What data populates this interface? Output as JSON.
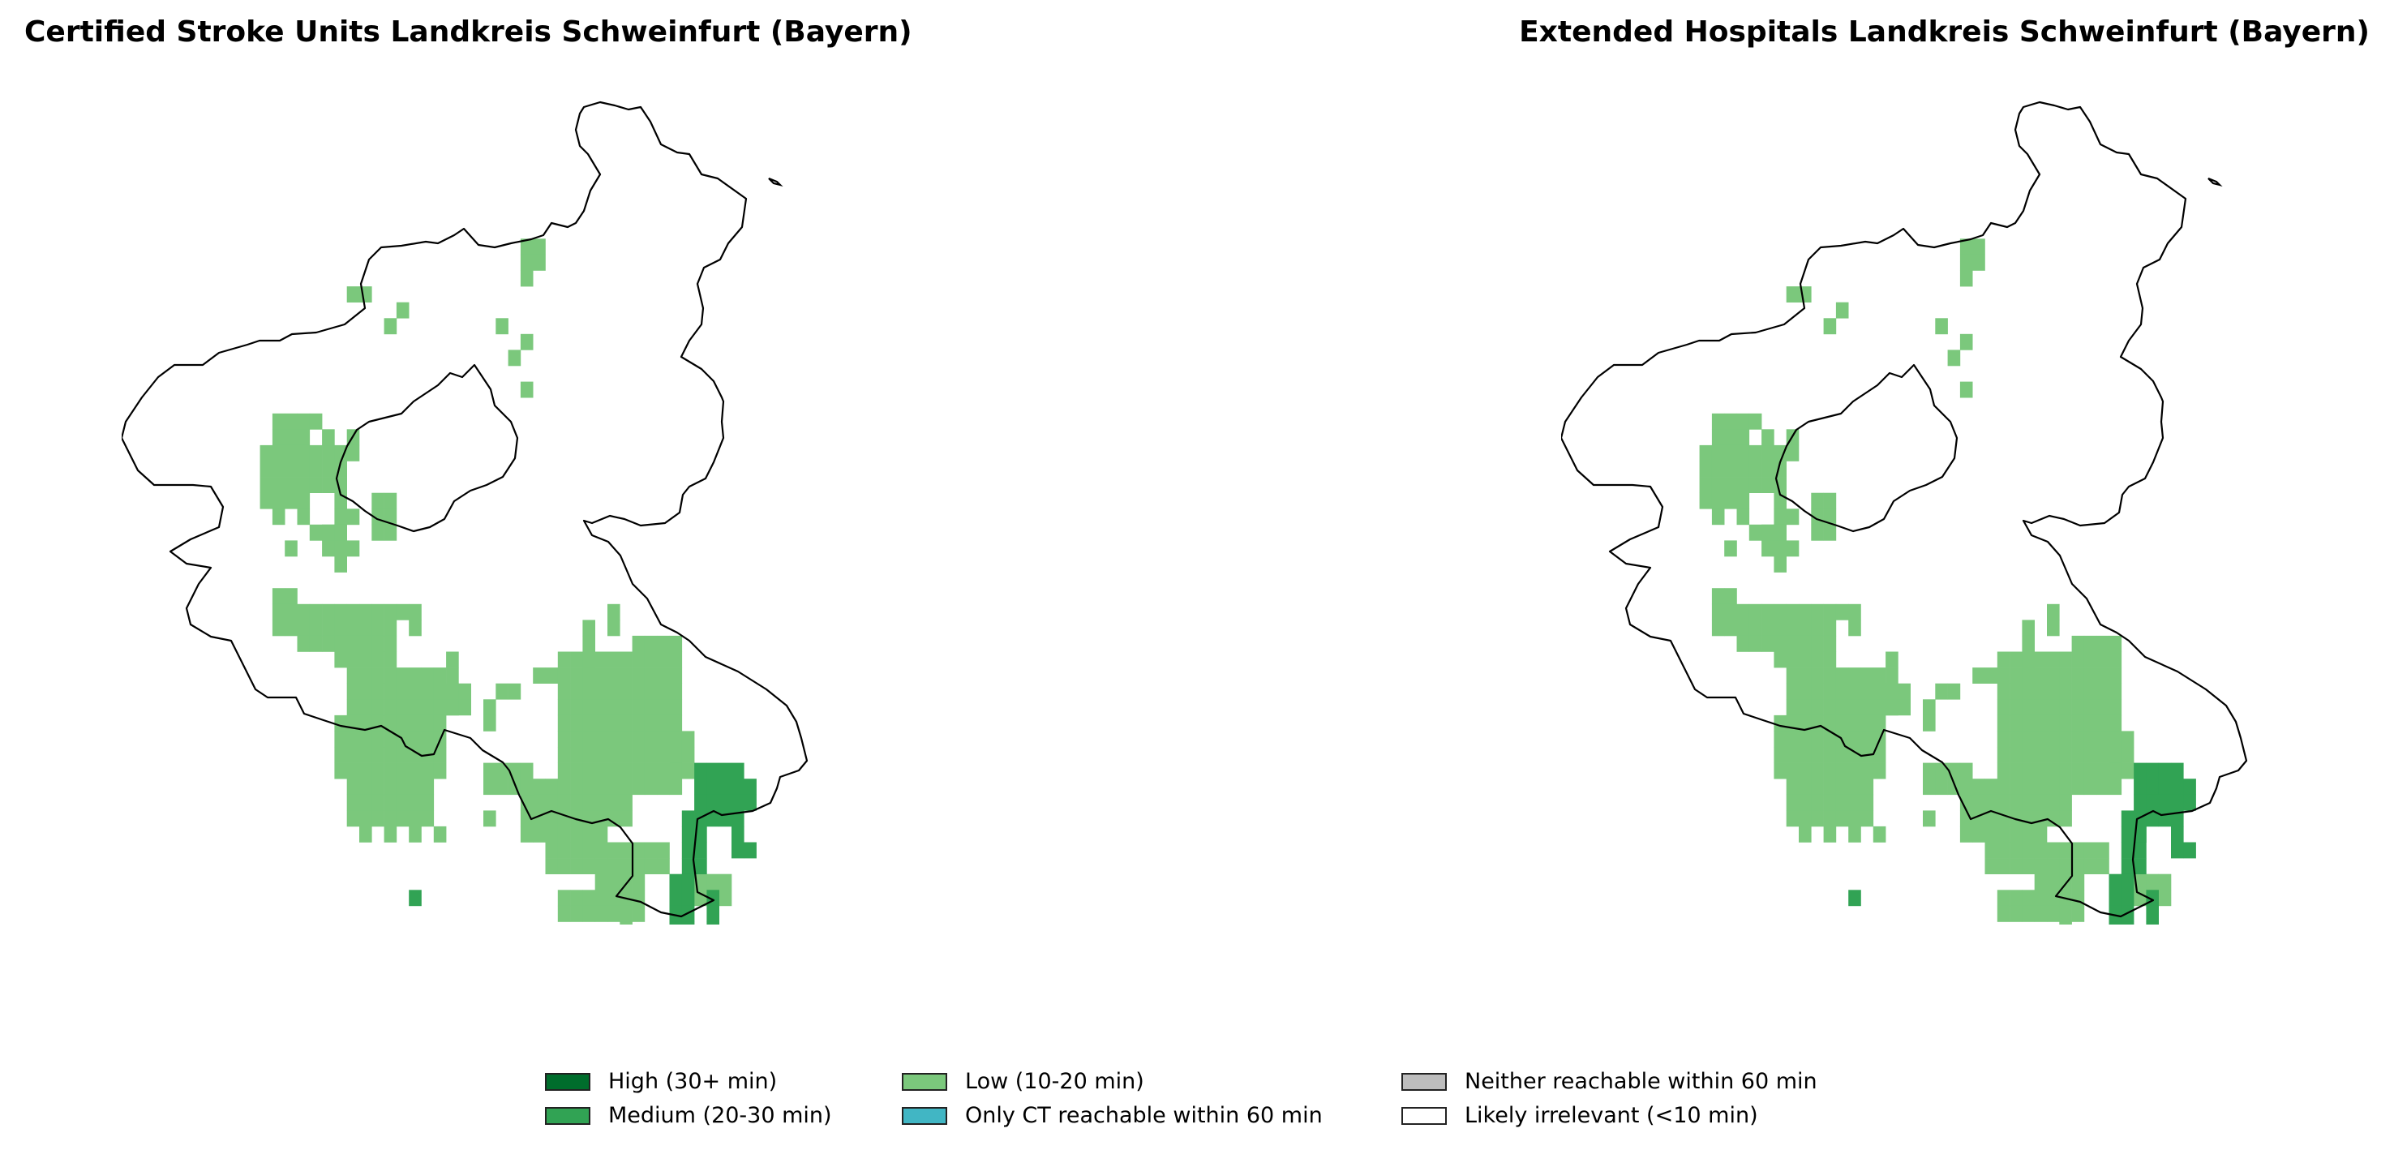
{
  "maps": [
    {
      "id": "left",
      "title": "Certified Stroke Units Landkreis Schweinfurt (Bayern)"
    },
    {
      "id": "right",
      "title": "Extended Hospitals Landkreis Schweinfurt (Bayern)"
    }
  ],
  "legend": {
    "items": [
      {
        "key": "high",
        "label": "High (30+ min)",
        "color": "#006d2c"
      },
      {
        "key": "medium",
        "label": "Medium (20-30 min)",
        "color": "#31a354"
      },
      {
        "key": "low",
        "label": "Low (10-20 min)",
        "color": "#7bc87c"
      },
      {
        "key": "ct",
        "label": "Only CT reachable within 60 min",
        "color": "#41b6c4"
      },
      {
        "key": "neither",
        "label": "Neither reachable within 60 min",
        "color": "#bdbdbd"
      },
      {
        "key": "irrel",
        "label": "Likely irrelevant (<10 min)",
        "color": "#ffffff"
      }
    ]
  }
}
